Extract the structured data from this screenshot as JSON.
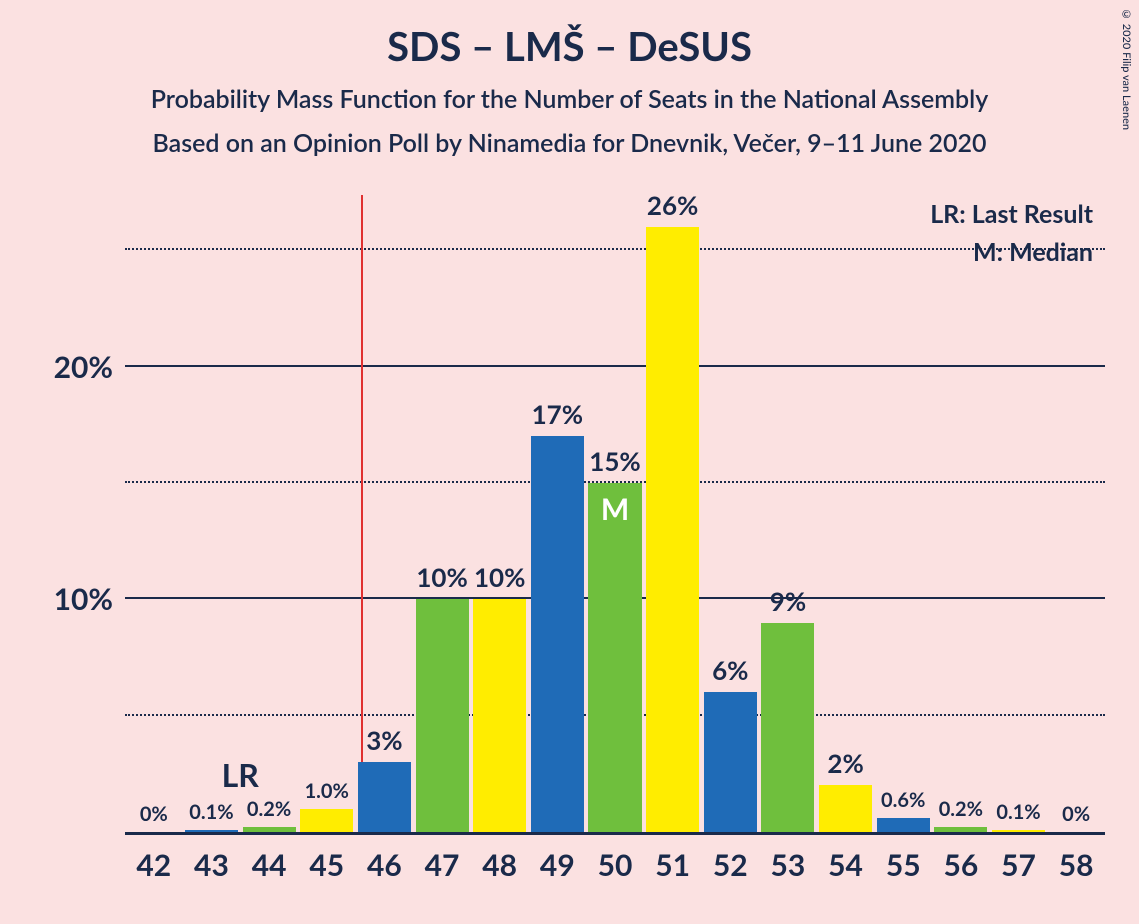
{
  "title": "SDS – LMŠ – DeSUS",
  "subtitle1": "Probability Mass Function for the Number of Seats in the National Assembly",
  "subtitle2": "Based on an Opinion Poll by Ninamedia for Dnevnik, Večer, 9–11 June 2020",
  "copyright": "© 2020 Filip van Laenen",
  "legend": {
    "lr": "LR: Last Result",
    "m": "M: Median"
  },
  "chart": {
    "type": "bar",
    "background_color": "#fbe1e1",
    "text_color": "#1a2a4a",
    "title_fontsize": 40,
    "subtitle_fontsize": 25,
    "xtick_fontsize": 30,
    "ytick_fontsize": 30,
    "legend_fontsize": 25,
    "barlabel_fontsize_large": 26,
    "barlabel_fontsize_small": 20,
    "lr_fontsize": 32,
    "m_fontsize": 30,
    "ylim": [
      0,
      27.5
    ],
    "ymajor": [
      10,
      20
    ],
    "yminor": [
      5,
      15,
      25
    ],
    "ytick_labels": [
      "10%",
      "20%"
    ],
    "grid_color_solid": "#1a2a4a",
    "grid_color_dotted": "#1a2a4a",
    "vline_x": 45.6,
    "vline_color": "#e03030",
    "bar_width": 0.92,
    "colors": {
      "blue": "#1f6bb7",
      "green": "#6fbf3d",
      "yellow": "#ffed00"
    },
    "color_cycle": [
      "yellow",
      "blue",
      "green"
    ],
    "categories": [
      42,
      43,
      44,
      45,
      46,
      47,
      48,
      49,
      50,
      51,
      52,
      53,
      54,
      55,
      56,
      57,
      58
    ],
    "values": [
      0,
      0.1,
      0.2,
      1.0,
      3,
      10,
      10,
      17,
      15,
      26,
      6,
      9,
      2,
      0.6,
      0.2,
      0.1,
      0
    ],
    "labels": [
      "0%",
      "0.1%",
      "0.2%",
      "1.0%",
      "3%",
      "10%",
      "10%",
      "17%",
      "15%",
      "26%",
      "6%",
      "9%",
      "2%",
      "0.6%",
      "0.2%",
      "0.1%",
      "0%"
    ],
    "label_small": [
      true,
      true,
      true,
      true,
      false,
      false,
      false,
      false,
      false,
      false,
      false,
      false,
      false,
      true,
      true,
      true,
      true
    ],
    "lr_index": 1,
    "median_index": 8,
    "lr_text": "LR",
    "m_text": "M"
  }
}
